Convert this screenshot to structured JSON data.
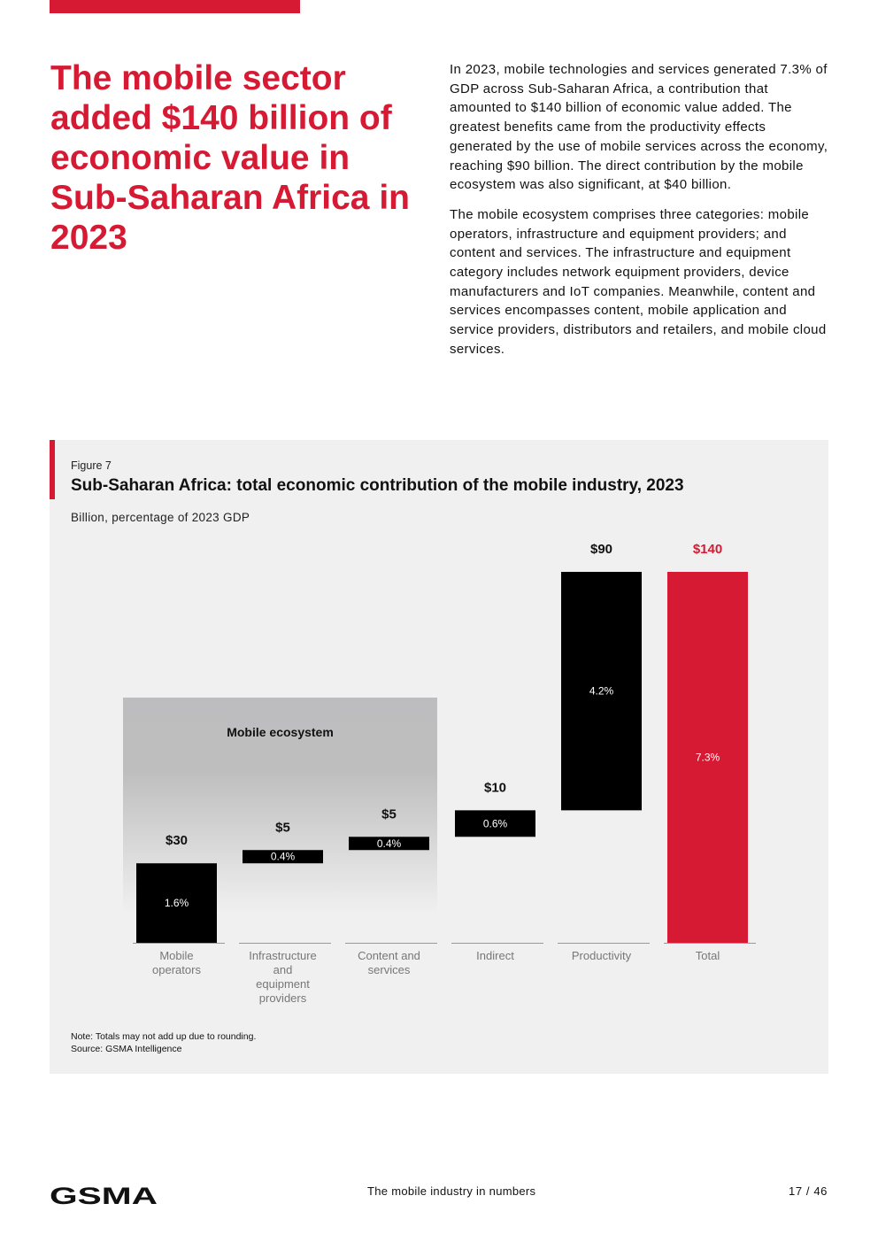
{
  "headline": "The mobile sector added $140 billion of economic value in Sub-Saharan Africa in 2023",
  "body": {
    "paragraph1": "In 2023, mobile technologies and services generated 7.3% of GDP across Sub-Saharan Africa, a contribution that amounted to $140 billion of economic value added. The greatest benefits came from the productivity effects generated by the use of mobile services across the economy, reaching $90 billion. The direct contribution by the mobile ecosystem was also significant, at $40 billion.",
    "paragraph2": "The mobile ecosystem comprises three categories: mobile operators, infrastructure and equipment providers; and content and services. The infrastructure and equipment category includes network equipment providers, device manufacturers and IoT companies. Meanwhile, content and services encompasses content, mobile application and service providers, distributors and retailers, and mobile cloud services."
  },
  "figure": {
    "label": "Figure 7",
    "title": "Sub-Saharan Africa: total economic contribution of the mobile industry, 2023",
    "subtitle": "Billion, percentage of 2023 GDP",
    "note": "Note: Totals may not add up due to rounding.",
    "source": "Source: GSMA Intelligence"
  },
  "chart_data": {
    "type": "bar",
    "subtype": "waterfall",
    "title": "Sub-Saharan Africa: total economic contribution of the mobile industry, 2023",
    "ylabel": "Billion, percentage of 2023 GDP",
    "categories": [
      "Mobile operators",
      "Infrastructure and equipment providers",
      "Content and services",
      "Indirect",
      "Productivity",
      "Total"
    ],
    "category_lines": [
      [
        "Mobile",
        "operators"
      ],
      [
        "Infrastructure",
        "and",
        "equipment",
        "providers"
      ],
      [
        "Content and",
        "services"
      ],
      [
        "Indirect"
      ],
      [
        "Productivity"
      ],
      [
        "Total"
      ]
    ],
    "values": [
      30,
      5,
      5,
      10,
      90,
      140
    ],
    "value_labels": [
      "$30",
      "$5",
      "$5",
      "$10",
      "$90",
      "$140"
    ],
    "gdp_share_labels": [
      "1.6%",
      "0.4%",
      "0.4%",
      "0.6%",
      "4.2%",
      "7.3%"
    ],
    "is_total": [
      false,
      false,
      false,
      false,
      false,
      true
    ],
    "ylim": [
      0,
      140
    ],
    "group_annotation": {
      "label": "Mobile ecosystem",
      "categories": [
        0,
        1,
        2
      ]
    },
    "colors": {
      "bar": "#000000",
      "total": "#d71a33",
      "axis": "#999999",
      "label_text": "#ffffff",
      "category_text": "#777777"
    }
  },
  "footer": {
    "logo": "GSMA",
    "title": "The mobile industry in numbers",
    "page": "17 / 46"
  }
}
